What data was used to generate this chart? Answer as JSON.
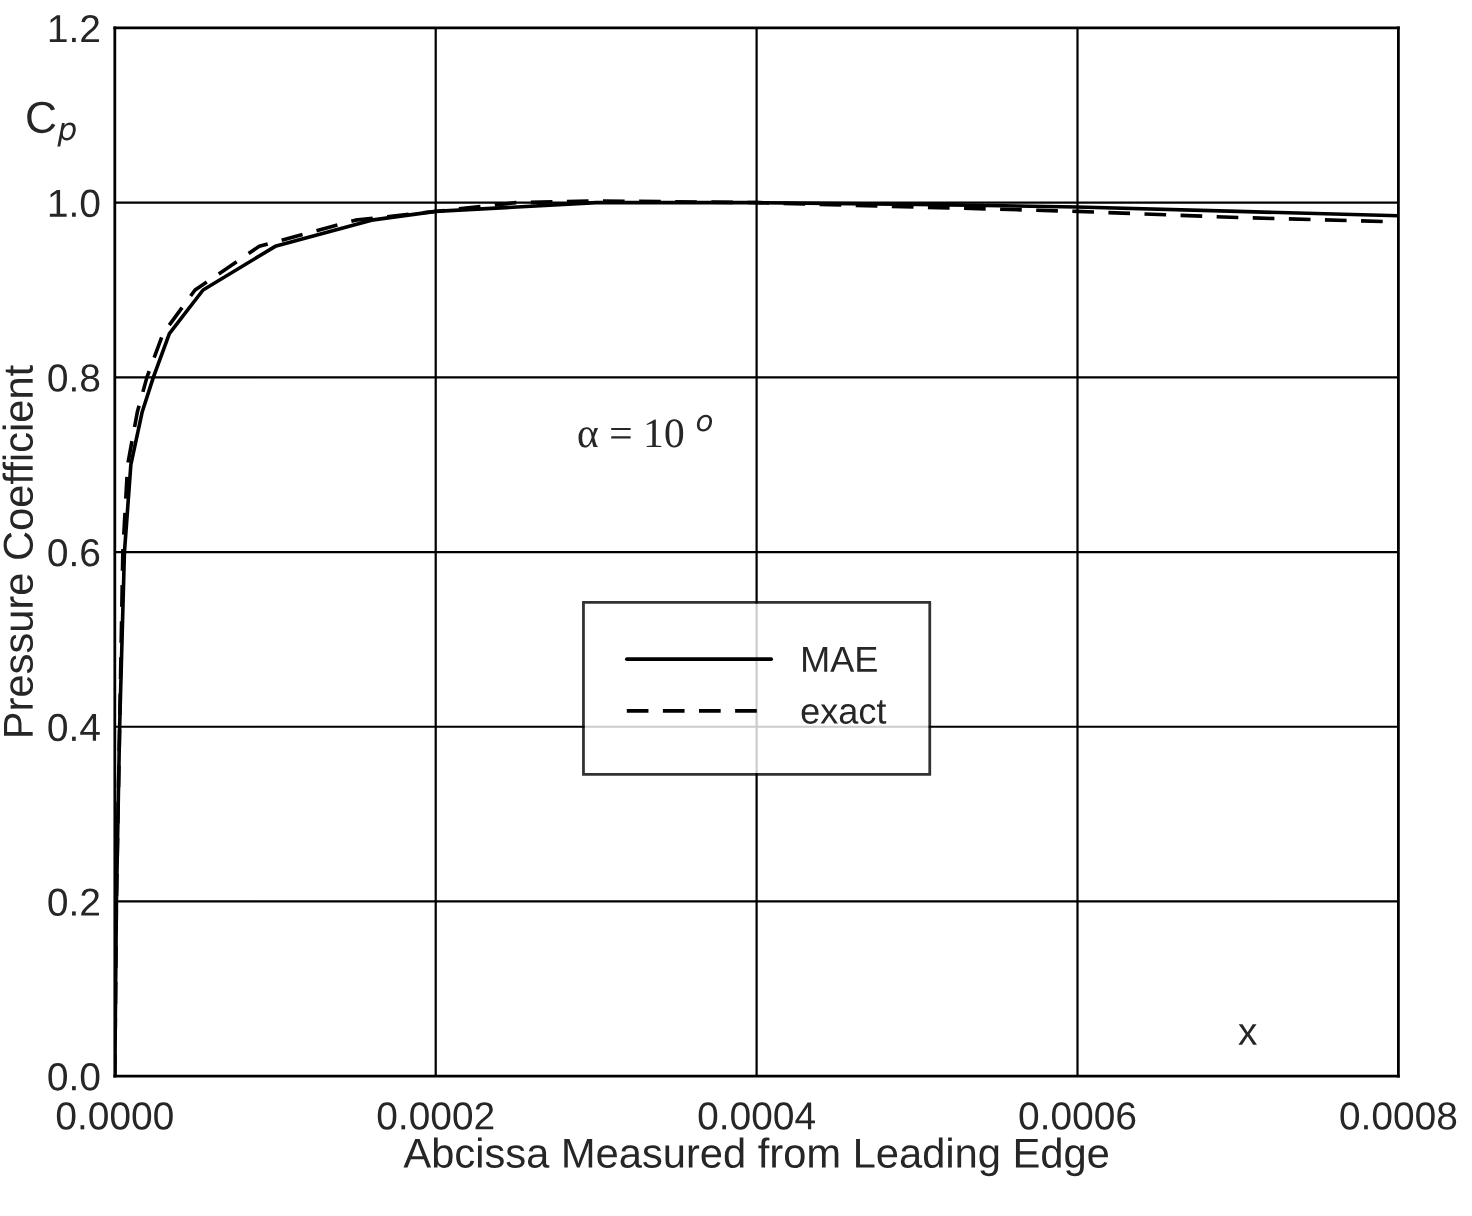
{
  "chart_data": {
    "type": "line",
    "xlabel": "Abcissa Measured from Leading Edge",
    "ylabel": "Pressure Coefficient",
    "annotations": [
      "C$_{p}$",
      "α = 10 $^{o}$",
      "x"
    ],
    "series": [
      {
        "name": "MAE",
        "color": "#000000",
        "line_style": "solid",
        "x": [
          0,
          1e-06,
          3e-06,
          6e-06,
          1e-05,
          1.7e-05,
          2.4e-05,
          3.4e-05,
          5.5e-05,
          0.0001,
          0.00016,
          0.0002,
          0.0003,
          0.0004,
          0.0005,
          0.0006,
          0.0007,
          0.0008
        ],
        "values": [
          0,
          0.2,
          0.4,
          0.6,
          0.7,
          0.76,
          0.8,
          0.85,
          0.9,
          0.95,
          0.98,
          0.99,
          1.0,
          1.0,
          0.998,
          0.995,
          0.99,
          0.985
        ]
      },
      {
        "name": "exact",
        "color": "#000000",
        "line_style": "dashed",
        "x": [
          0,
          1e-06,
          3e-06,
          5e-06,
          8e-06,
          1.4e-05,
          2e-05,
          3e-05,
          5e-05,
          9e-05,
          0.00015,
          0.00025,
          0.0003,
          0.0004,
          0.0005,
          0.0006,
          0.0007,
          0.0008
        ],
        "values": [
          0,
          0.2,
          0.4,
          0.6,
          0.7,
          0.76,
          0.8,
          0.85,
          0.9,
          0.95,
          0.98,
          1.0,
          1.002,
          1.0,
          0.995,
          0.99,
          0.983,
          0.978
        ]
      }
    ],
    "xlim": [
      0,
      0.0008
    ],
    "xticks": [
      {
        "value": 0,
        "label": "0.0000"
      },
      {
        "value": 0.0002,
        "label": "0.0002"
      },
      {
        "value": 0.0004,
        "label": "0.0004"
      },
      {
        "value": 0.0006,
        "label": "0.0006"
      },
      {
        "value": 0.0008,
        "label": "0.0008"
      }
    ],
    "ylim": [
      0,
      1.2
    ],
    "yticks": [
      {
        "value": 0,
        "label": "0.0"
      },
      {
        "value": 0.2,
        "label": "0.2"
      },
      {
        "value": 0.4,
        "label": "0.4"
      },
      {
        "value": 0.6,
        "label": "0.6"
      },
      {
        "value": 0.8,
        "label": "0.8"
      },
      {
        "value": 1.0,
        "label": "1.0"
      },
      {
        "value": 1.2,
        "label": "1.2"
      }
    ],
    "grid": true,
    "legend": "center"
  }
}
